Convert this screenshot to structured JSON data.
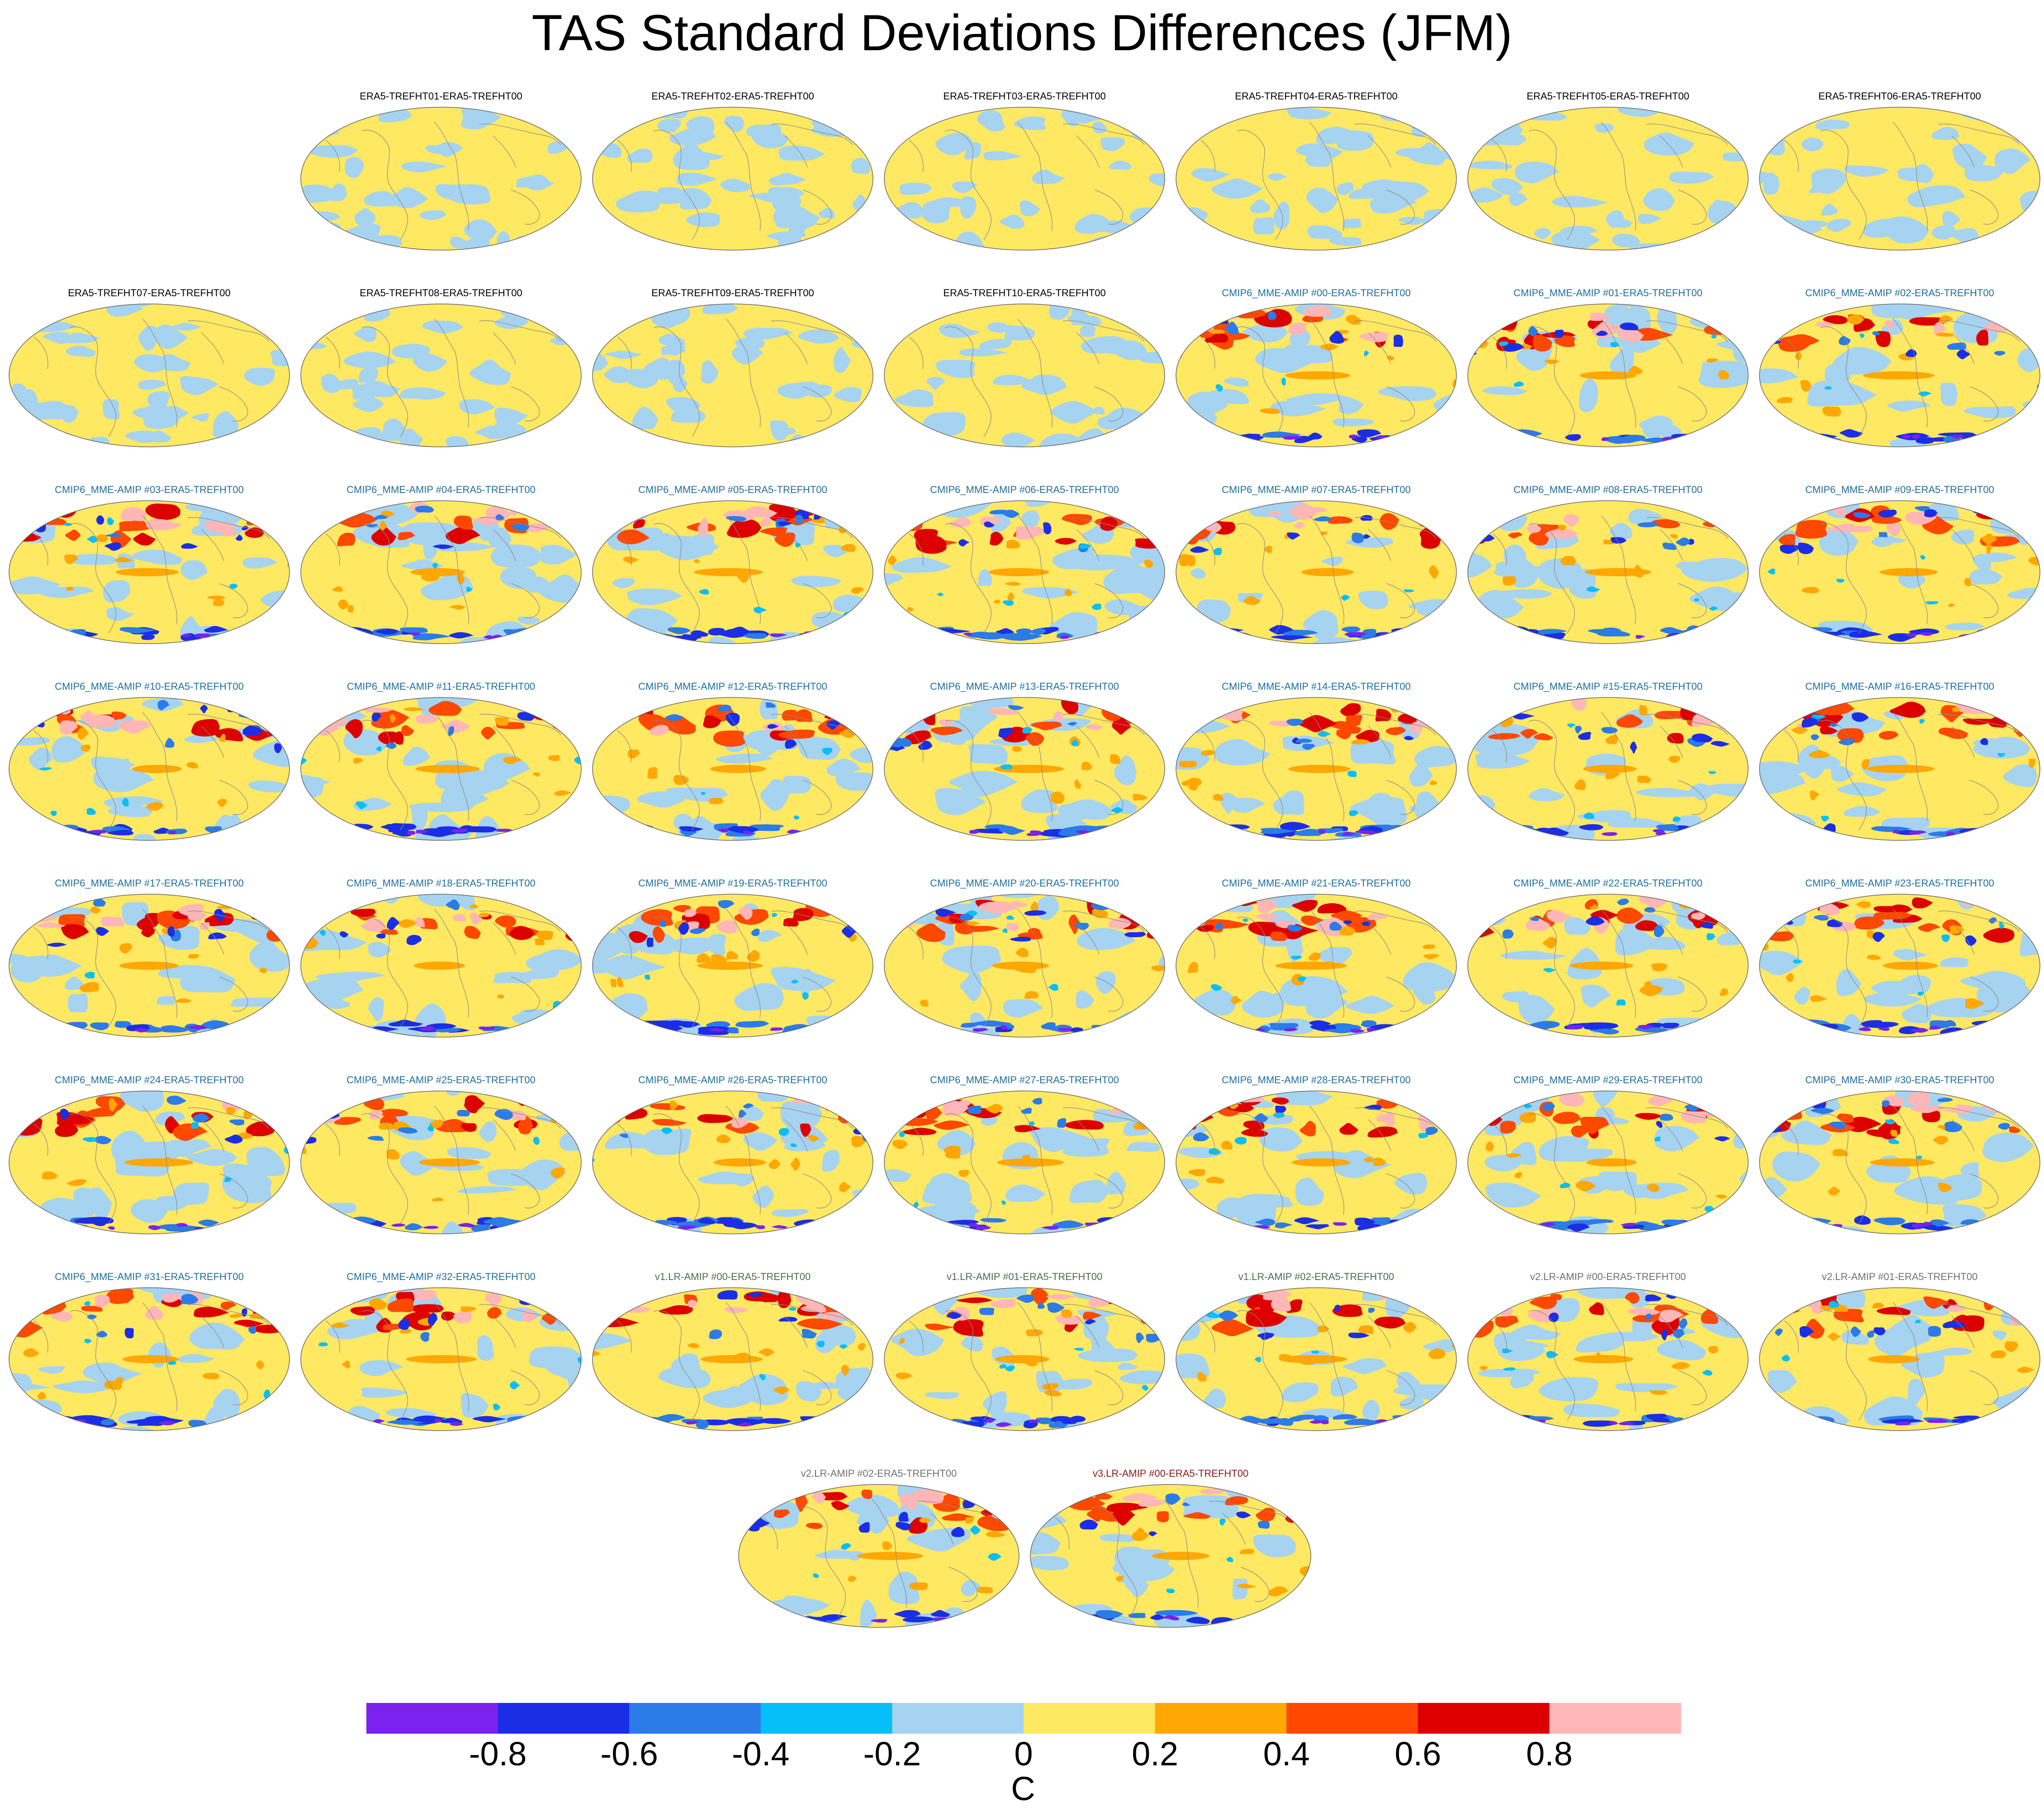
{
  "title": "TAS Standard Deviations Differences (JFM)",
  "chart_data": {
    "type": "heatmap",
    "projection": "Robinson",
    "panels": [
      {
        "label": "ERA5-TREFHT01-ERA5-TREFHT00",
        "group": "ERA5"
      },
      {
        "label": "ERA5-TREFHT02-ERA5-TREFHT00",
        "group": "ERA5"
      },
      {
        "label": "ERA5-TREFHT03-ERA5-TREFHT00",
        "group": "ERA5"
      },
      {
        "label": "ERA5-TREFHT04-ERA5-TREFHT00",
        "group": "ERA5"
      },
      {
        "label": "ERA5-TREFHT05-ERA5-TREFHT00",
        "group": "ERA5"
      },
      {
        "label": "ERA5-TREFHT06-ERA5-TREFHT00",
        "group": "ERA5"
      },
      {
        "label": "ERA5-TREFHT07-ERA5-TREFHT00",
        "group": "ERA5"
      },
      {
        "label": "ERA5-TREFHT08-ERA5-TREFHT00",
        "group": "ERA5"
      },
      {
        "label": "ERA5-TREFHT09-ERA5-TREFHT00",
        "group": "ERA5"
      },
      {
        "label": "ERA5-TREFHT10-ERA5-TREFHT00",
        "group": "ERA5"
      },
      {
        "label": "CMIP6_MME-AMIP  #00-ERA5-TREFHT00",
        "group": "CMIP6"
      },
      {
        "label": "CMIP6_MME-AMIP  #01-ERA5-TREFHT00",
        "group": "CMIP6"
      },
      {
        "label": "CMIP6_MME-AMIP  #02-ERA5-TREFHT00",
        "group": "CMIP6"
      },
      {
        "label": "CMIP6_MME-AMIP  #03-ERA5-TREFHT00",
        "group": "CMIP6"
      },
      {
        "label": "CMIP6_MME-AMIP  #04-ERA5-TREFHT00",
        "group": "CMIP6"
      },
      {
        "label": "CMIP6_MME-AMIP  #05-ERA5-TREFHT00",
        "group": "CMIP6"
      },
      {
        "label": "CMIP6_MME-AMIP  #06-ERA5-TREFHT00",
        "group": "CMIP6"
      },
      {
        "label": "CMIP6_MME-AMIP  #07-ERA5-TREFHT00",
        "group": "CMIP6"
      },
      {
        "label": "CMIP6_MME-AMIP  #08-ERA5-TREFHT00",
        "group": "CMIP6"
      },
      {
        "label": "CMIP6_MME-AMIP  #09-ERA5-TREFHT00",
        "group": "CMIP6"
      },
      {
        "label": "CMIP6_MME-AMIP  #10-ERA5-TREFHT00",
        "group": "CMIP6"
      },
      {
        "label": "CMIP6_MME-AMIP  #11-ERA5-TREFHT00",
        "group": "CMIP6"
      },
      {
        "label": "CMIP6_MME-AMIP  #12-ERA5-TREFHT00",
        "group": "CMIP6"
      },
      {
        "label": "CMIP6_MME-AMIP  #13-ERA5-TREFHT00",
        "group": "CMIP6"
      },
      {
        "label": "CMIP6_MME-AMIP  #14-ERA5-TREFHT00",
        "group": "CMIP6"
      },
      {
        "label": "CMIP6_MME-AMIP  #15-ERA5-TREFHT00",
        "group": "CMIP6"
      },
      {
        "label": "CMIP6_MME-AMIP  #16-ERA5-TREFHT00",
        "group": "CMIP6"
      },
      {
        "label": "CMIP6_MME-AMIP  #17-ERA5-TREFHT00",
        "group": "CMIP6"
      },
      {
        "label": "CMIP6_MME-AMIP  #18-ERA5-TREFHT00",
        "group": "CMIP6"
      },
      {
        "label": "CMIP6_MME-AMIP  #19-ERA5-TREFHT00",
        "group": "CMIP6"
      },
      {
        "label": "CMIP6_MME-AMIP  #20-ERA5-TREFHT00",
        "group": "CMIP6"
      },
      {
        "label": "CMIP6_MME-AMIP  #21-ERA5-TREFHT00",
        "group": "CMIP6"
      },
      {
        "label": "CMIP6_MME-AMIP  #22-ERA5-TREFHT00",
        "group": "CMIP6"
      },
      {
        "label": "CMIP6_MME-AMIP  #23-ERA5-TREFHT00",
        "group": "CMIP6"
      },
      {
        "label": "CMIP6_MME-AMIP  #24-ERA5-TREFHT00",
        "group": "CMIP6"
      },
      {
        "label": "CMIP6_MME-AMIP  #25-ERA5-TREFHT00",
        "group": "CMIP6"
      },
      {
        "label": "CMIP6_MME-AMIP  #26-ERA5-TREFHT00",
        "group": "CMIP6"
      },
      {
        "label": "CMIP6_MME-AMIP  #27-ERA5-TREFHT00",
        "group": "CMIP6"
      },
      {
        "label": "CMIP6_MME-AMIP  #28-ERA5-TREFHT00",
        "group": "CMIP6"
      },
      {
        "label": "CMIP6_MME-AMIP  #29-ERA5-TREFHT00",
        "group": "CMIP6"
      },
      {
        "label": "CMIP6_MME-AMIP  #30-ERA5-TREFHT00",
        "group": "CMIP6"
      },
      {
        "label": "CMIP6_MME-AMIP  #31-ERA5-TREFHT00",
        "group": "CMIP6"
      },
      {
        "label": "CMIP6_MME-AMIP  #32-ERA5-TREFHT00",
        "group": "CMIP6"
      },
      {
        "label": "v1.LR-AMIP  #00-ERA5-TREFHT00",
        "group": "v1"
      },
      {
        "label": "v1.LR-AMIP  #01-ERA5-TREFHT00",
        "group": "v1"
      },
      {
        "label": "v1.LR-AMIP  #02-ERA5-TREFHT00",
        "group": "v1"
      },
      {
        "label": "v2.LR-AMIP  #00-ERA5-TREFHT00",
        "group": "v2"
      },
      {
        "label": "v2.LR-AMIP  #01-ERA5-TREFHT00",
        "group": "v2"
      },
      {
        "label": "v2.LR-AMIP  #02-ERA5-TREFHT00",
        "group": "v2"
      },
      {
        "label": "v3.LR-AMIP  #00-ERA5-TREFHT00",
        "group": "v3"
      }
    ],
    "label_colors": {
      "ERA5": "#000000",
      "CMIP6": "#1f6e9c",
      "v1": "#4d6b4d",
      "v2": "#707070",
      "v3": "#8b1a1a"
    },
    "colorbar": {
      "levels": [
        -0.8,
        -0.6,
        -0.4,
        -0.2,
        0,
        0.2,
        0.4,
        0.6,
        0.8
      ],
      "tick_labels": [
        "-0.8",
        "-0.6",
        "-0.4",
        "-0.2",
        "0",
        "0.2",
        "0.4",
        "0.6",
        "0.8"
      ],
      "colors": [
        "#7b22ee",
        "#1b2ee6",
        "#2b7be8",
        "#06bff9",
        "#a6d3f0",
        "#ffe862",
        "#ffa704",
        "#ff4800",
        "#dd0000",
        "#ffb6b6"
      ],
      "units": "C"
    }
  }
}
